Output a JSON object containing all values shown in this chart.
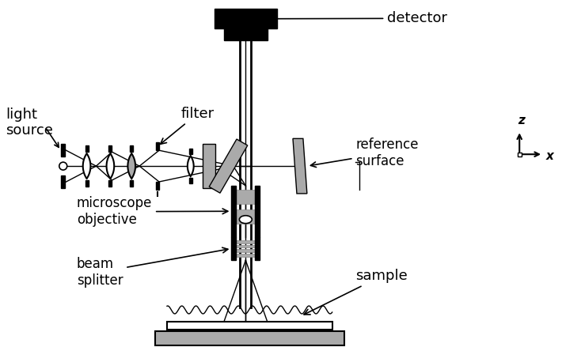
{
  "bg_color": "#ffffff",
  "line_color": "#000000",
  "gray_color": "#888888",
  "light_gray": "#aaaaaa",
  "labels": {
    "detector": "detector",
    "light_source": "light\nsource",
    "filter": "filter",
    "microscope_objective": "microscope\nobjective",
    "beam_splitter": "beam\nsplitter",
    "reference_surface": "reference\nsurface",
    "sample": "sample",
    "z_axis": "z",
    "x_axis": "x"
  },
  "figsize": [
    7.34,
    4.58
  ],
  "dpi": 100
}
